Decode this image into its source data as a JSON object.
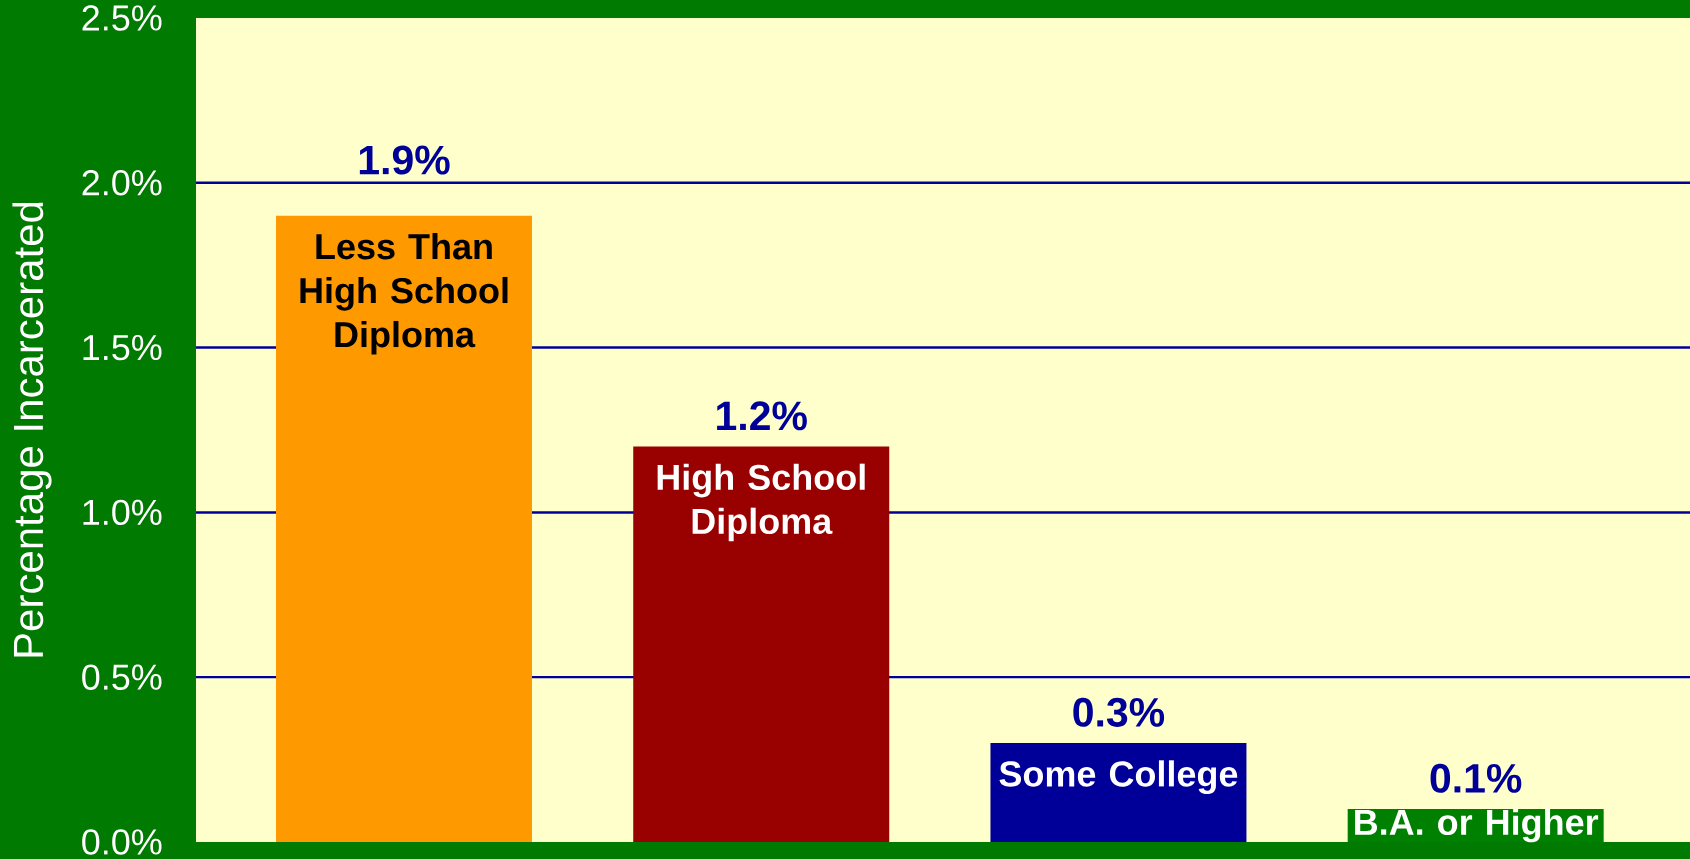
{
  "chart_data": {
    "type": "bar",
    "ylabel": "Percentage Incarcerated",
    "categories": [
      "Less Than High School Diploma",
      "High School Diploma",
      "Some College",
      "B.A. or Higher"
    ],
    "values": [
      1.9,
      1.2,
      0.3,
      0.1
    ],
    "colors": [
      "#ff9900",
      "#990000",
      "#000099",
      "#008000"
    ],
    "value_labels": [
      "1.9%",
      "1.2%",
      "0.3%",
      "0.1%"
    ],
    "ylim": [
      0,
      2.5
    ],
    "yticks": [
      {
        "value": 0,
        "label": "0.0%"
      },
      {
        "value": 0.5,
        "label": "0.5%"
      },
      {
        "value": 1,
        "label": "1.0%"
      },
      {
        "value": 1.5,
        "label": "1.5%"
      },
      {
        "value": 2,
        "label": "2.0%"
      },
      {
        "value": 2.5,
        "label": "2.5%"
      }
    ],
    "grid": "y"
  }
}
